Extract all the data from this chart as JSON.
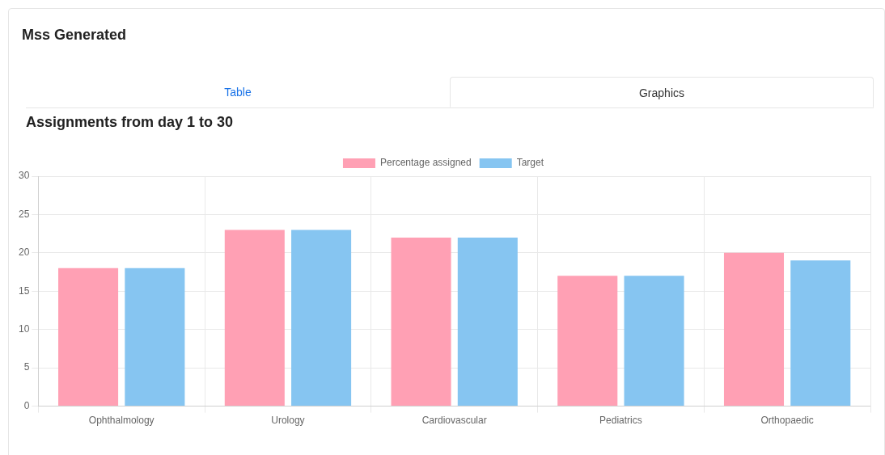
{
  "chart_data": {
    "type": "bar",
    "title": "Mss Generated",
    "subtitle": "Assignments from day 1 to 30",
    "annotations": [
      "Table",
      "Graphics"
    ],
    "categories": [
      "Ophthalmology",
      "Urology",
      "Cardiovascular",
      "Pediatrics",
      "Orthopaedic"
    ],
    "series": [
      {
        "name": "Percentage assigned",
        "color": "#ffa0b4",
        "values": [
          18,
          23,
          22,
          17,
          20
        ]
      },
      {
        "name": "Target",
        "color": "#86c5f1",
        "values": [
          18,
          23,
          22,
          17,
          19
        ]
      }
    ],
    "ylim": [
      0,
      30
    ],
    "yticks": [
      0,
      5,
      10,
      15,
      20,
      25,
      30
    ],
    "grid": true,
    "legend": "top"
  }
}
